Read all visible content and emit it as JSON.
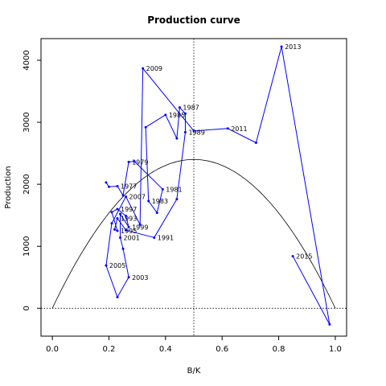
{
  "chart_data": {
    "type": "line",
    "title": "Production curve",
    "xlabel": "B/K",
    "ylabel": "Production",
    "xlim": [
      -0.04,
      1.04
    ],
    "ylim": [
      -450,
      4350
    ],
    "xticks": [
      0.0,
      0.2,
      0.4,
      0.6,
      0.8,
      1.0
    ],
    "xtick_labels": [
      "0.0",
      "0.2",
      "0.4",
      "0.6",
      "0.8",
      "1.0"
    ],
    "yticks": [
      0,
      1000,
      2000,
      3000,
      4000
    ],
    "ytick_labels": [
      "0",
      "1000",
      "2000",
      "3000",
      "4000"
    ],
    "grid": false,
    "reference_lines": {
      "vertical_x": 0.5,
      "horizontal_y": 0
    },
    "colors": {
      "series": "#0000ff",
      "curve": "#000000",
      "axes": "#000000"
    },
    "curve": {
      "name": "",
      "formula": "4*MSY*x*(1-x)",
      "MSY": 2400
    },
    "series": [
      {
        "name": "",
        "points": [
          {
            "x": 0.19,
            "y": 2030,
            "label": ""
          },
          {
            "x": 0.2,
            "y": 1960,
            "label": ""
          },
          {
            "x": 0.23,
            "y": 1970,
            "label": "1977"
          },
          {
            "x": 0.25,
            "y": 1820,
            "label": ""
          },
          {
            "x": 0.27,
            "y": 2360,
            "label": "1979"
          },
          {
            "x": 0.29,
            "y": 2370,
            "label": ""
          },
          {
            "x": 0.39,
            "y": 1920,
            "label": "1981"
          },
          {
            "x": 0.37,
            "y": 1540,
            "label": ""
          },
          {
            "x": 0.34,
            "y": 1730,
            "label": "1983"
          },
          {
            "x": 0.33,
            "y": 2920,
            "label": ""
          },
          {
            "x": 0.4,
            "y": 3120,
            "label": "1985"
          },
          {
            "x": 0.44,
            "y": 2740,
            "label": ""
          },
          {
            "x": 0.45,
            "y": 3240,
            "label": "1987"
          },
          {
            "x": 0.47,
            "y": 3140,
            "label": ""
          },
          {
            "x": 0.47,
            "y": 2840,
            "label": "1989"
          },
          {
            "x": 0.44,
            "y": 1760,
            "label": ""
          },
          {
            "x": 0.36,
            "y": 1140,
            "label": "1991"
          },
          {
            "x": 0.26,
            "y": 1260,
            "label": ""
          },
          {
            "x": 0.23,
            "y": 1450,
            "label": "1993"
          },
          {
            "x": 0.22,
            "y": 1270,
            "label": ""
          },
          {
            "x": 0.23,
            "y": 1250,
            "label": "1995"
          },
          {
            "x": 0.21,
            "y": 1550,
            "label": ""
          },
          {
            "x": 0.23,
            "y": 1600,
            "label": "1997"
          },
          {
            "x": 0.26,
            "y": 1490,
            "label": ""
          },
          {
            "x": 0.27,
            "y": 1310,
            "label": "1999"
          },
          {
            "x": 0.24,
            "y": 1520,
            "label": ""
          },
          {
            "x": 0.24,
            "y": 1140,
            "label": "2001"
          },
          {
            "x": 0.25,
            "y": 960,
            "label": ""
          },
          {
            "x": 0.27,
            "y": 500,
            "label": "2003"
          },
          {
            "x": 0.23,
            "y": 180,
            "label": ""
          },
          {
            "x": 0.19,
            "y": 690,
            "label": "2005"
          },
          {
            "x": 0.21,
            "y": 1370,
            "label": ""
          },
          {
            "x": 0.26,
            "y": 1800,
            "label": "2007"
          },
          {
            "x": 0.31,
            "y": 1350,
            "label": ""
          },
          {
            "x": 0.32,
            "y": 3870,
            "label": "2009"
          },
          {
            "x": 0.5,
            "y": 2860,
            "label": ""
          },
          {
            "x": 0.62,
            "y": 2900,
            "label": "2011"
          },
          {
            "x": 0.72,
            "y": 2670,
            "label": ""
          },
          {
            "x": 0.81,
            "y": 4220,
            "label": "2013"
          },
          {
            "x": 0.98,
            "y": -260,
            "label": ""
          },
          {
            "x": 0.85,
            "y": 840,
            "label": "2015"
          }
        ]
      }
    ]
  }
}
